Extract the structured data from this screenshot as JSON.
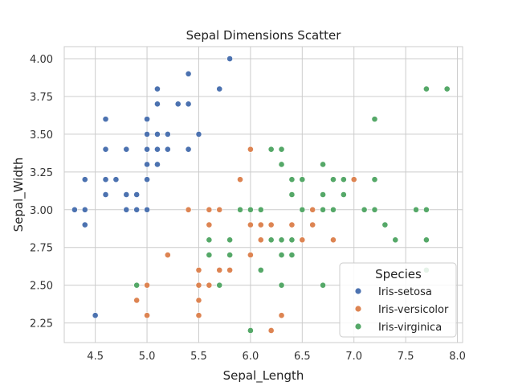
{
  "chart_data": {
    "type": "scatter",
    "title": "Sepal Dimensions Scatter",
    "xlabel": "Sepal_Length",
    "ylabel": "Sepal_Width",
    "xlim": [
      4.2,
      8.05
    ],
    "ylim": [
      2.12,
      4.08
    ],
    "xticks": [
      4.5,
      5.0,
      5.5,
      6.0,
      6.5,
      7.0,
      7.5,
      8.0
    ],
    "xtick_labels": [
      "4.5",
      "5.0",
      "5.5",
      "6.0",
      "6.5",
      "7.0",
      "7.5",
      "8.0"
    ],
    "yticks": [
      2.25,
      2.5,
      2.75,
      3.0,
      3.25,
      3.5,
      3.75,
      4.0
    ],
    "ytick_labels": [
      "2.25",
      "2.50",
      "2.75",
      "3.00",
      "3.25",
      "3.50",
      "3.75",
      "4.00"
    ],
    "grid": true,
    "legend": {
      "title": "Species",
      "placement": "lower-right"
    },
    "series": [
      {
        "name": "Iris-setosa",
        "color": "#4c72b0",
        "points": [
          [
            5.8,
            4.0
          ],
          [
            5.4,
            3.9
          ],
          [
            5.1,
            3.8
          ],
          [
            5.7,
            3.8
          ],
          [
            5.3,
            3.7
          ],
          [
            5.4,
            3.7
          ],
          [
            5.1,
            3.7
          ],
          [
            4.6,
            3.6
          ],
          [
            5.0,
            3.6
          ],
          [
            5.0,
            3.5
          ],
          [
            5.1,
            3.5
          ],
          [
            5.2,
            3.5
          ],
          [
            5.5,
            3.5
          ],
          [
            4.6,
            3.4
          ],
          [
            4.8,
            3.4
          ],
          [
            5.0,
            3.4
          ],
          [
            5.1,
            3.4
          ],
          [
            5.2,
            3.4
          ],
          [
            5.4,
            3.4
          ],
          [
            5.0,
            3.3
          ],
          [
            5.1,
            3.3
          ],
          [
            4.4,
            3.2
          ],
          [
            4.6,
            3.2
          ],
          [
            4.7,
            3.2
          ],
          [
            5.0,
            3.2
          ],
          [
            4.6,
            3.1
          ],
          [
            4.8,
            3.1
          ],
          [
            4.9,
            3.1
          ],
          [
            4.3,
            3.0
          ],
          [
            4.4,
            3.0
          ],
          [
            4.8,
            3.0
          ],
          [
            4.9,
            3.0
          ],
          [
            5.0,
            3.0
          ],
          [
            4.4,
            2.9
          ],
          [
            4.5,
            2.3
          ]
        ]
      },
      {
        "name": "Iris-versicolor",
        "color": "#dd8452",
        "points": [
          [
            6.0,
            3.4
          ],
          [
            5.9,
            3.2
          ],
          [
            7.0,
            3.2
          ],
          [
            5.4,
            3.0
          ],
          [
            5.6,
            3.0
          ],
          [
            5.7,
            3.0
          ],
          [
            6.1,
            3.0
          ],
          [
            6.6,
            3.0
          ],
          [
            6.7,
            3.0
          ],
          [
            5.6,
            2.9
          ],
          [
            6.0,
            2.9
          ],
          [
            6.1,
            2.9
          ],
          [
            6.2,
            2.9
          ],
          [
            6.4,
            2.9
          ],
          [
            6.6,
            2.9
          ],
          [
            6.1,
            2.8
          ],
          [
            6.5,
            2.8
          ],
          [
            6.8,
            2.8
          ],
          [
            5.2,
            2.7
          ],
          [
            5.6,
            2.7
          ],
          [
            5.8,
            2.7
          ],
          [
            6.0,
            2.7
          ],
          [
            5.5,
            2.6
          ],
          [
            5.7,
            2.6
          ],
          [
            5.8,
            2.6
          ],
          [
            5.0,
            2.5
          ],
          [
            5.5,
            2.5
          ],
          [
            5.6,
            2.5
          ],
          [
            4.9,
            2.4
          ],
          [
            5.5,
            2.4
          ],
          [
            5.0,
            2.3
          ],
          [
            5.5,
            2.3
          ],
          [
            6.3,
            2.3
          ],
          [
            6.2,
            2.2
          ]
        ]
      },
      {
        "name": "Iris-virginica",
        "color": "#55a868",
        "points": [
          [
            7.7,
            3.8
          ],
          [
            7.9,
            3.8
          ],
          [
            7.2,
            3.6
          ],
          [
            6.2,
            3.4
          ],
          [
            6.3,
            3.4
          ],
          [
            6.3,
            3.3
          ],
          [
            6.7,
            3.3
          ],
          [
            6.4,
            3.2
          ],
          [
            6.5,
            3.2
          ],
          [
            6.8,
            3.2
          ],
          [
            6.9,
            3.2
          ],
          [
            7.2,
            3.2
          ],
          [
            6.4,
            3.1
          ],
          [
            6.7,
            3.1
          ],
          [
            6.9,
            3.1
          ],
          [
            5.9,
            3.0
          ],
          [
            6.0,
            3.0
          ],
          [
            6.1,
            3.0
          ],
          [
            6.5,
            3.0
          ],
          [
            6.7,
            3.0
          ],
          [
            6.8,
            3.0
          ],
          [
            7.1,
            3.0
          ],
          [
            7.2,
            3.0
          ],
          [
            7.6,
            3.0
          ],
          [
            7.7,
            3.0
          ],
          [
            7.3,
            2.9
          ],
          [
            5.6,
            2.8
          ],
          [
            5.8,
            2.8
          ],
          [
            6.2,
            2.8
          ],
          [
            6.3,
            2.8
          ],
          [
            6.4,
            2.8
          ],
          [
            7.4,
            2.8
          ],
          [
            7.7,
            2.8
          ],
          [
            5.6,
            2.7
          ],
          [
            5.8,
            2.7
          ],
          [
            6.3,
            2.7
          ],
          [
            6.4,
            2.7
          ],
          [
            6.1,
            2.6
          ],
          [
            7.7,
            2.6
          ],
          [
            4.9,
            2.5
          ],
          [
            5.7,
            2.5
          ],
          [
            6.3,
            2.5
          ],
          [
            6.7,
            2.5
          ],
          [
            6.0,
            2.2
          ]
        ]
      }
    ]
  }
}
